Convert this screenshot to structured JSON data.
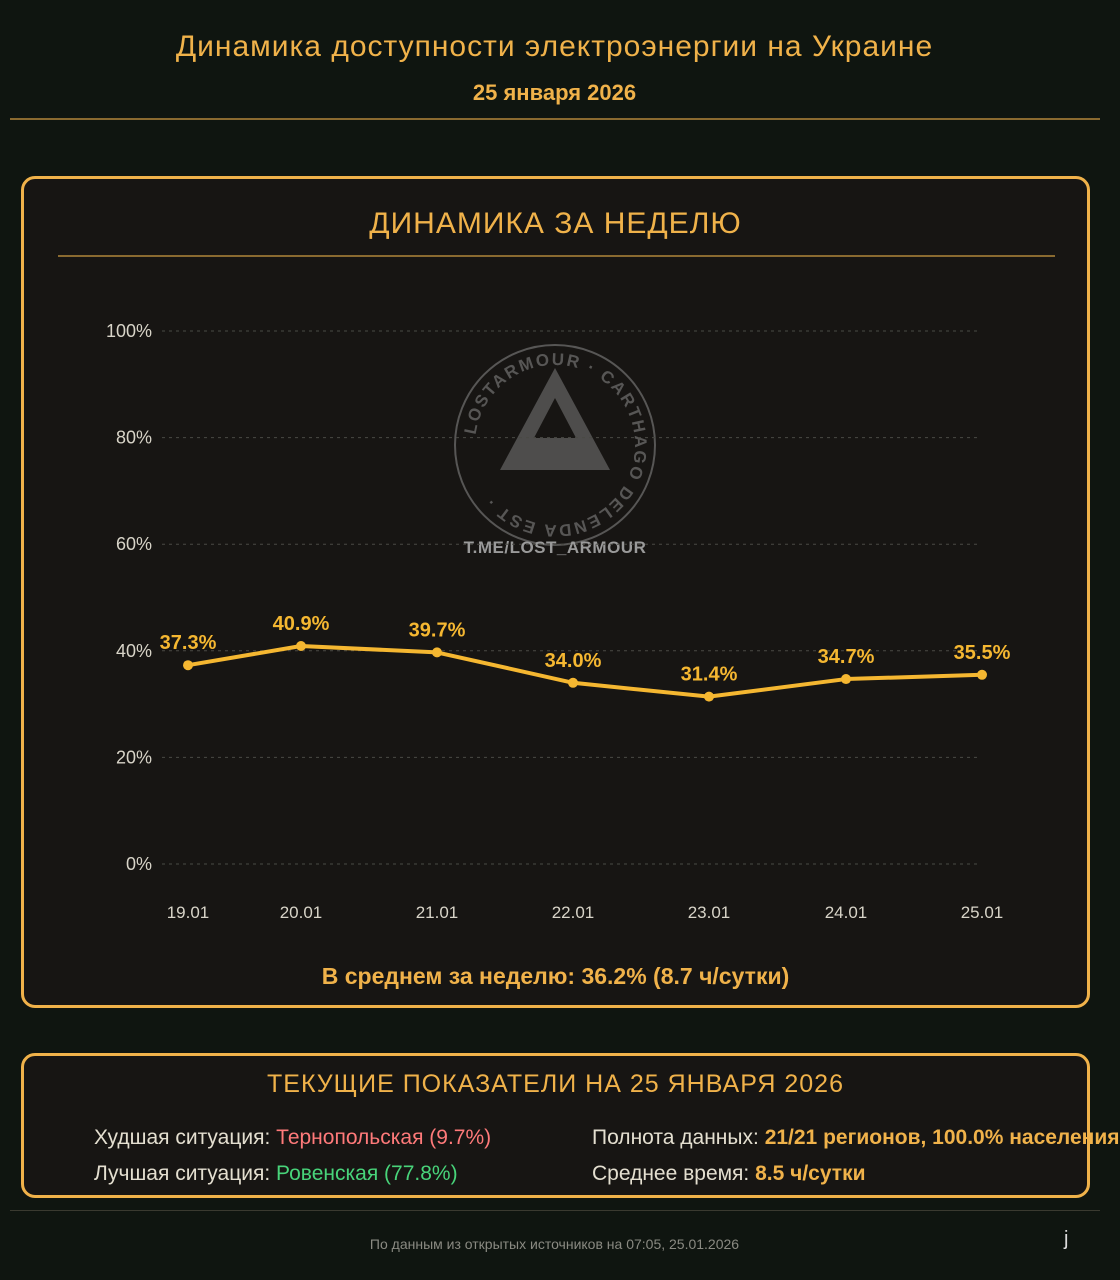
{
  "header": {
    "title": "Динамика доступности электроэнергии на Украине",
    "date": "25 января 2026"
  },
  "weekly": {
    "title": "ДИНАМИКА ЗА НЕДЕЛЮ",
    "average": "В среднем за неделю: 36.2% (8.7 ч/сутки)"
  },
  "chart_data": {
    "type": "line",
    "x": [
      "19.01",
      "20.01",
      "21.01",
      "22.01",
      "23.01",
      "24.01",
      "25.01"
    ],
    "series": [
      {
        "values": [
          37.3,
          40.9,
          39.7,
          34.0,
          31.4,
          34.7,
          35.5
        ],
        "labels": [
          "37.3%",
          "40.9%",
          "39.7%",
          "34.0%",
          "31.4%",
          "34.7%",
          "35.5%"
        ]
      }
    ],
    "yticks": [
      "0%",
      "20%",
      "40%",
      "60%",
      "80%",
      "100%"
    ],
    "ylim": [
      0,
      100
    ],
    "grid": true,
    "line_color": "#f5b731"
  },
  "watermark": {
    "ring_text": "LOSTARMOUR · CARTHAGO DELENDA EST ·",
    "link": "T.ME/LOST_ARMOUR"
  },
  "current": {
    "title": "ТЕКУЩИЕ ПОКАЗАТЕЛИ НА 25 ЯНВАРЯ 2026",
    "worst_label": "Худшая ситуация:",
    "worst_value": "Тернопольская (9.7%)",
    "best_label": "Лучшая ситуация:",
    "best_value": "Ровенская (77.8%)",
    "completeness_label": "Полнота данных:",
    "completeness_value": "21/21 регионов, 100.0% населения",
    "avg_time_label": "Среднее время:",
    "avg_time_value": "8.5 ч/сутки"
  },
  "footer": "По данным из открытых источников на 07:05, 25.01.2026",
  "colors": {
    "accent": "#f0b24a",
    "bad": "#ff7a7a",
    "good": "#48d47a"
  }
}
